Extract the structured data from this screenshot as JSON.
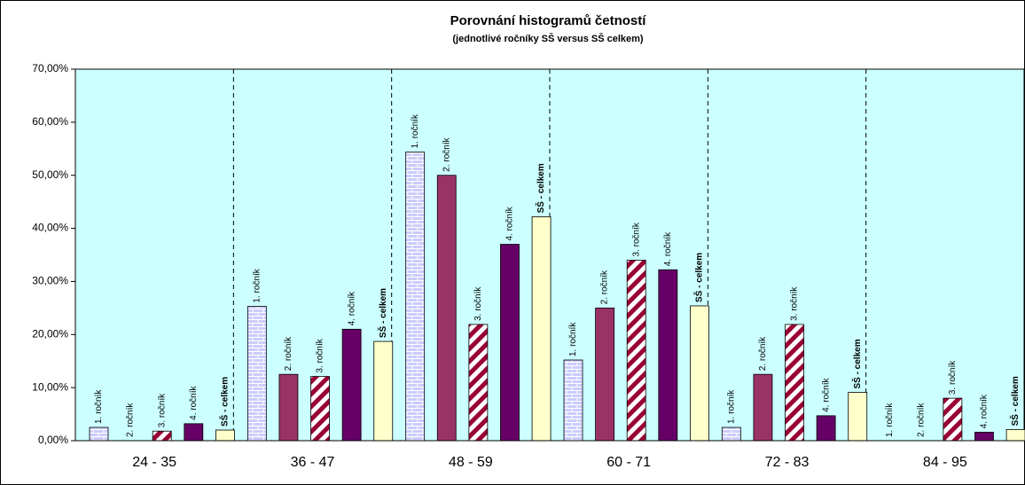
{
  "chart_data": {
    "type": "bar",
    "title": "Porovnání histogramů četností",
    "subtitle": "(jednotlivé ročníky SŠ versus SŠ celkem)",
    "categories": [
      "24 - 35",
      "36 - 47",
      "48 - 59",
      "60 - 71",
      "72 - 83",
      "84 - 95"
    ],
    "series": [
      {
        "name": "1. ročník",
        "color": "#ccccff",
        "pattern": "brick",
        "values": [
          2.5,
          25.3,
          54.4,
          15.2,
          2.5,
          0
        ]
      },
      {
        "name": "2. ročník",
        "color": "#993366",
        "values": [
          0,
          12.5,
          50.0,
          25.0,
          12.5,
          0
        ]
      },
      {
        "name": "3. ročník",
        "color": "#990033",
        "pattern": "stripes",
        "values": [
          1.8,
          12.1,
          21.9,
          34.0,
          21.9,
          8.0
        ]
      },
      {
        "name": "4. ročník",
        "color": "#660066",
        "values": [
          3.2,
          21.0,
          37.0,
          32.2,
          4.7,
          1.6
        ]
      },
      {
        "name": "SŠ - celkem",
        "color": "#ffffcc",
        "values": [
          2.0,
          18.7,
          42.2,
          25.4,
          9.1,
          2.1
        ]
      }
    ],
    "ylim": [
      0,
      70
    ],
    "yticks": [
      {
        "value": 0,
        "label": "0,00%"
      },
      {
        "value": 10,
        "label": "10,00%"
      },
      {
        "value": 20,
        "label": "20,00%"
      },
      {
        "value": 30,
        "label": "30,00%"
      },
      {
        "value": 40,
        "label": "40,00%"
      },
      {
        "value": 50,
        "label": "50,00%"
      },
      {
        "value": 60,
        "label": "60,00%"
      },
      {
        "value": 70,
        "label": "70,00%"
      }
    ],
    "plot_background": "#ccffff"
  }
}
